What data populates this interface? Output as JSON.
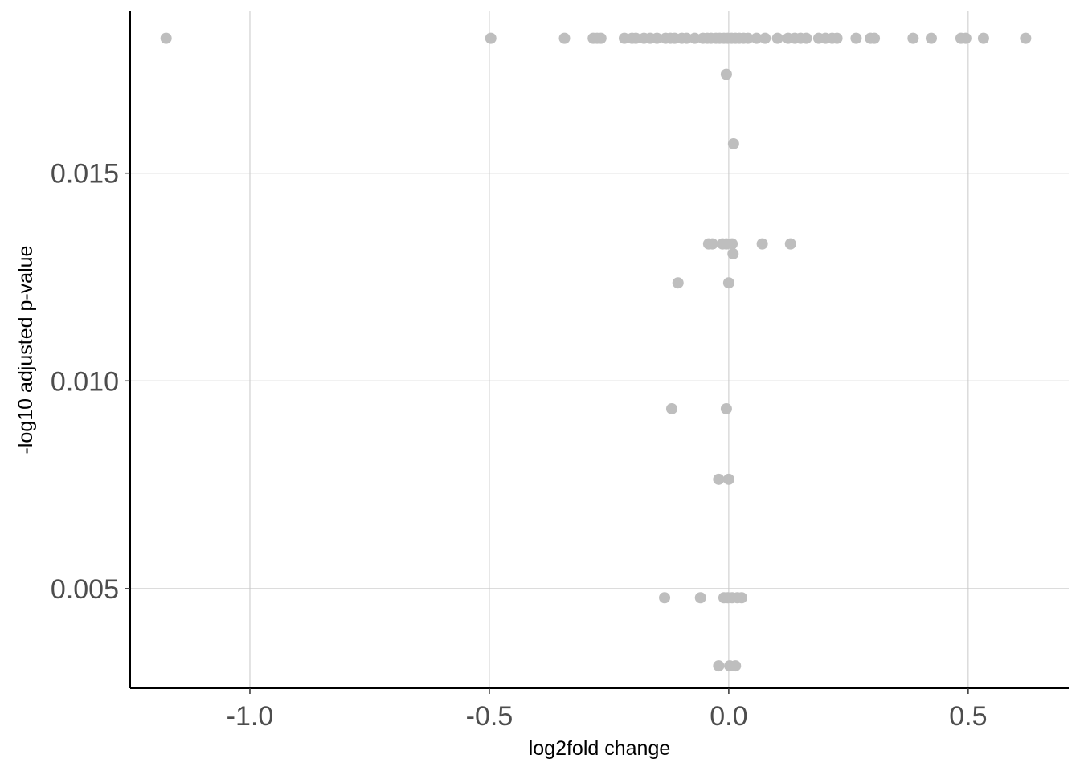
{
  "chart_data": {
    "type": "scatter",
    "title": "",
    "xlabel": "log2fold change",
    "ylabel": "-log10 adjusted p-value",
    "xlim": [
      -1.25,
      0.71
    ],
    "ylim": [
      0.0026,
      0.0189
    ],
    "xticks": [
      -1.0,
      -0.5,
      0.0,
      0.5
    ],
    "xtick_labels": [
      "-1.0",
      "-0.5",
      "0.0",
      "0.5"
    ],
    "yticks": [
      0.005,
      0.01,
      0.015
    ],
    "ytick_labels": [
      "0.005",
      "0.010",
      "0.015"
    ],
    "grid": true,
    "legend": "none",
    "point_color": "#bebebe",
    "points": [
      {
        "x": -1.175,
        "y": 0.01825
      },
      {
        "x": -0.497,
        "y": 0.01825
      },
      {
        "x": -0.343,
        "y": 0.01825
      },
      {
        "x": -0.283,
        "y": 0.01825
      },
      {
        "x": -0.275,
        "y": 0.01825
      },
      {
        "x": -0.267,
        "y": 0.01825
      },
      {
        "x": -0.218,
        "y": 0.01825
      },
      {
        "x": -0.202,
        "y": 0.01825
      },
      {
        "x": -0.194,
        "y": 0.01825
      },
      {
        "x": -0.177,
        "y": 0.01825
      },
      {
        "x": -0.164,
        "y": 0.01825
      },
      {
        "x": -0.15,
        "y": 0.01825
      },
      {
        "x": -0.132,
        "y": 0.01825
      },
      {
        "x": -0.122,
        "y": 0.01825
      },
      {
        "x": -0.113,
        "y": 0.01825
      },
      {
        "x": -0.098,
        "y": 0.01825
      },
      {
        "x": -0.088,
        "y": 0.01825
      },
      {
        "x": -0.071,
        "y": 0.01825
      },
      {
        "x": -0.054,
        "y": 0.01825
      },
      {
        "x": -0.045,
        "y": 0.01825
      },
      {
        "x": -0.037,
        "y": 0.01825
      },
      {
        "x": -0.027,
        "y": 0.01825
      },
      {
        "x": -0.019,
        "y": 0.01825
      },
      {
        "x": -0.01,
        "y": 0.01825
      },
      {
        "x": -0.002,
        "y": 0.01825
      },
      {
        "x": 0.006,
        "y": 0.01825
      },
      {
        "x": 0.014,
        "y": 0.01825
      },
      {
        "x": 0.022,
        "y": 0.01825
      },
      {
        "x": 0.031,
        "y": 0.01825
      },
      {
        "x": 0.04,
        "y": 0.01825
      },
      {
        "x": 0.058,
        "y": 0.01825
      },
      {
        "x": 0.076,
        "y": 0.01825
      },
      {
        "x": 0.102,
        "y": 0.01825
      },
      {
        "x": 0.124,
        "y": 0.01825
      },
      {
        "x": 0.138,
        "y": 0.01825
      },
      {
        "x": 0.15,
        "y": 0.01825
      },
      {
        "x": 0.162,
        "y": 0.01825
      },
      {
        "x": 0.188,
        "y": 0.01825
      },
      {
        "x": 0.202,
        "y": 0.01825
      },
      {
        "x": 0.216,
        "y": 0.01825
      },
      {
        "x": 0.226,
        "y": 0.01825
      },
      {
        "x": 0.266,
        "y": 0.01825
      },
      {
        "x": 0.296,
        "y": 0.01825
      },
      {
        "x": 0.304,
        "y": 0.01825
      },
      {
        "x": 0.385,
        "y": 0.01825
      },
      {
        "x": 0.423,
        "y": 0.01825
      },
      {
        "x": 0.485,
        "y": 0.01825
      },
      {
        "x": 0.495,
        "y": 0.01825
      },
      {
        "x": 0.532,
        "y": 0.01825
      },
      {
        "x": 0.62,
        "y": 0.01825
      },
      {
        "x": -0.005,
        "y": 0.01738
      },
      {
        "x": 0.01,
        "y": 0.01571
      },
      {
        "x": -0.042,
        "y": 0.0133
      },
      {
        "x": -0.034,
        "y": 0.0133
      },
      {
        "x": -0.013,
        "y": 0.0133
      },
      {
        "x": -0.005,
        "y": 0.0133
      },
      {
        "x": 0.007,
        "y": 0.0133
      },
      {
        "x": 0.07,
        "y": 0.0133
      },
      {
        "x": 0.129,
        "y": 0.0133
      },
      {
        "x": 0.009,
        "y": 0.01306
      },
      {
        "x": -0.106,
        "y": 0.01236
      },
      {
        "x": 0.0,
        "y": 0.01236
      },
      {
        "x": -0.119,
        "y": 0.00933
      },
      {
        "x": -0.005,
        "y": 0.00933
      },
      {
        "x": -0.021,
        "y": 0.00763
      },
      {
        "x": 0.0,
        "y": 0.00763
      },
      {
        "x": -0.134,
        "y": 0.00478
      },
      {
        "x": -0.059,
        "y": 0.00478
      },
      {
        "x": -0.01,
        "y": 0.00478
      },
      {
        "x": -0.002,
        "y": 0.00478
      },
      {
        "x": 0.007,
        "y": 0.00478
      },
      {
        "x": 0.018,
        "y": 0.00478
      },
      {
        "x": 0.027,
        "y": 0.00478
      },
      {
        "x": -0.021,
        "y": 0.00314
      },
      {
        "x": 0.002,
        "y": 0.00314
      },
      {
        "x": 0.014,
        "y": 0.00314
      }
    ]
  }
}
